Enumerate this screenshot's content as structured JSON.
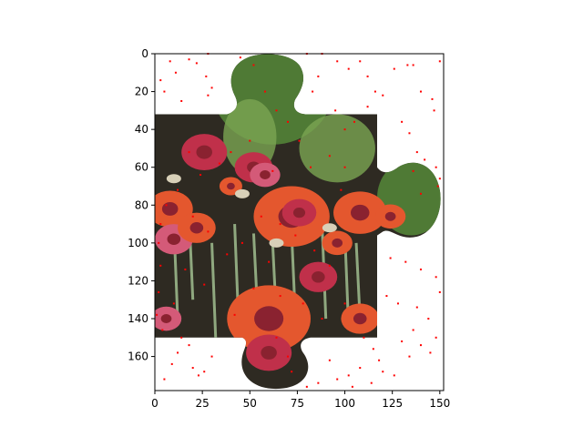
{
  "chart_data": {
    "type": "image",
    "title": "",
    "xlabel": "",
    "ylabel": "",
    "xlim": [
      0,
      152
    ],
    "ylim": [
      178,
      0
    ],
    "x_ticks": [
      0,
      25,
      50,
      75,
      100,
      125,
      150
    ],
    "x_tick_labels": [
      "0",
      "25",
      "50",
      "75",
      "100",
      "125",
      "150"
    ],
    "y_ticks": [
      0,
      20,
      40,
      60,
      80,
      100,
      120,
      140,
      160
    ],
    "y_tick_labels": [
      "0",
      "20",
      "40",
      "60",
      "80",
      "100",
      "120",
      "140",
      "160"
    ],
    "grid": false,
    "image": {
      "description": "jigsaw puzzle piece filled with red-orange gerbera flowers and green leaves",
      "colors": {
        "background_dark": "#2e2a22",
        "leaf": "#4f7a35",
        "leaf_light": "#7aa552",
        "stem": "#8fa87f",
        "flower_orange": "#e4572e",
        "flower_red": "#c0304a",
        "flower_pink": "#d45a78"
      }
    },
    "noise_points": {
      "color": "#ff0000",
      "points": [
        [
          8,
          4
        ],
        [
          11,
          10
        ],
        [
          3,
          14
        ],
        [
          5,
          20
        ],
        [
          14,
          25
        ],
        [
          18,
          3
        ],
        [
          22,
          5
        ],
        [
          28,
          0
        ],
        [
          27,
          12
        ],
        [
          30,
          18
        ],
        [
          28,
          22
        ],
        [
          45,
          2
        ],
        [
          52,
          6
        ],
        [
          80,
          0
        ],
        [
          88,
          0
        ],
        [
          96,
          4
        ],
        [
          102,
          8
        ],
        [
          108,
          4
        ],
        [
          112,
          12
        ],
        [
          116,
          20
        ],
        [
          120,
          22
        ],
        [
          126,
          8
        ],
        [
          133,
          6
        ],
        [
          136,
          6
        ],
        [
          140,
          20
        ],
        [
          146,
          24
        ],
        [
          150,
          4
        ],
        [
          147,
          30
        ],
        [
          130,
          36
        ],
        [
          134,
          42
        ],
        [
          138,
          52
        ],
        [
          142,
          56
        ],
        [
          148,
          60
        ],
        [
          150,
          66
        ],
        [
          136,
          62
        ],
        [
          140,
          74
        ],
        [
          149,
          70
        ],
        [
          112,
          28
        ],
        [
          105,
          36
        ],
        [
          100,
          40
        ],
        [
          95,
          30
        ],
        [
          86,
          12
        ],
        [
          83,
          20
        ],
        [
          92,
          54
        ],
        [
          100,
          60
        ],
        [
          98,
          72
        ],
        [
          124,
          108
        ],
        [
          132,
          110
        ],
        [
          140,
          114
        ],
        [
          148,
          118
        ],
        [
          150,
          126
        ],
        [
          122,
          128
        ],
        [
          128,
          132
        ],
        [
          138,
          134
        ],
        [
          144,
          140
        ],
        [
          136,
          146
        ],
        [
          130,
          152
        ],
        [
          140,
          154
        ],
        [
          145,
          158
        ],
        [
          134,
          160
        ],
        [
          148,
          150
        ],
        [
          20,
          166
        ],
        [
          23,
          170
        ],
        [
          26,
          168
        ],
        [
          30,
          160
        ],
        [
          12,
          158
        ],
        [
          9,
          164
        ],
        [
          5,
          172
        ],
        [
          18,
          154
        ],
        [
          14,
          150
        ],
        [
          110,
          150
        ],
        [
          115,
          156
        ],
        [
          118,
          162
        ],
        [
          108,
          166
        ],
        [
          102,
          170
        ],
        [
          96,
          172
        ],
        [
          104,
          176
        ],
        [
          114,
          174
        ],
        [
          120,
          168
        ],
        [
          126,
          170
        ],
        [
          86,
          174
        ],
        [
          92,
          162
        ],
        [
          80,
          176
        ],
        [
          72,
          168
        ],
        [
          2,
          100
        ],
        [
          3,
          112
        ],
        [
          2,
          126
        ],
        [
          1,
          138
        ],
        [
          4,
          146
        ],
        [
          3,
          90
        ],
        [
          58,
          20
        ],
        [
          64,
          30
        ],
        [
          70,
          36
        ],
        [
          50,
          46
        ],
        [
          40,
          52
        ],
        [
          34,
          58
        ],
        [
          62,
          62
        ],
        [
          76,
          46
        ],
        [
          82,
          60
        ],
        [
          56,
          86
        ],
        [
          66,
          90
        ],
        [
          74,
          96
        ],
        [
          46,
          100
        ],
        [
          38,
          106
        ],
        [
          60,
          110
        ],
        [
          84,
          104
        ],
        [
          92,
          112
        ],
        [
          52,
          124
        ],
        [
          66,
          128
        ],
        [
          78,
          132
        ],
        [
          42,
          138
        ],
        [
          88,
          140
        ],
        [
          100,
          132
        ],
        [
          64,
          150
        ],
        [
          70,
          160
        ],
        [
          18,
          52
        ],
        [
          24,
          64
        ],
        [
          12,
          72
        ],
        [
          6,
          80
        ],
        [
          20,
          86
        ],
        [
          28,
          94
        ],
        [
          16,
          114
        ],
        [
          26,
          122
        ],
        [
          10,
          132
        ]
      ]
    }
  }
}
